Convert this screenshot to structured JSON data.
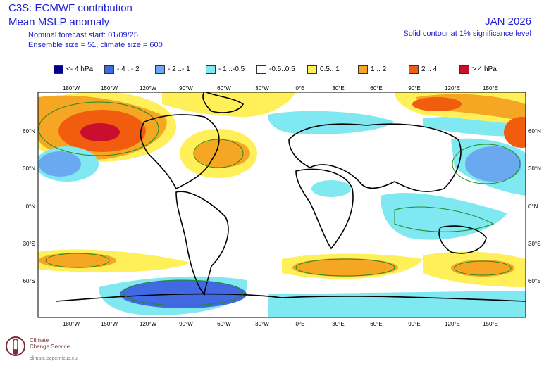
{
  "header": {
    "title": "C3S: ECMWF contribution",
    "variable": "Mean MSLP anomaly",
    "forecast_start": "Nominal forecast start: 01/09/25",
    "ensemble": "Ensemble size = 51, climate size = 600",
    "valid_month": "JAN 2026",
    "note": "Solid contour at 1% significance level"
  },
  "legend": [
    {
      "label": "<- 4 hPa",
      "color": "#00008b"
    },
    {
      "label": "- 4 ..- 2",
      "color": "#4169e1"
    },
    {
      "label": "- 2 ..- 1",
      "color": "#6aa8f0"
    },
    {
      "label": "- 1 ..-0.5",
      "color": "#7fe8f0"
    },
    {
      "label": "-0.5..0.5",
      "color": "#ffffff"
    },
    {
      "label": "0.5.. 1",
      "color": "#fff05a"
    },
    {
      "label": "1 .. 2",
      "color": "#f5a623"
    },
    {
      "label": "2 .. 4",
      "color": "#f25c0f"
    },
    {
      "label": ">  4 hPa",
      "color": "#c8102e"
    }
  ],
  "axes": {
    "lon_labels": [
      "180°W",
      "150°W",
      "120°W",
      "90°W",
      "60°W",
      "30°W",
      "0°E",
      "30°E",
      "60°E",
      "90°E",
      "120°E",
      "150°E"
    ],
    "lat_labels": [
      "60°N",
      "30°N",
      "0°N",
      "30°S",
      "60°S"
    ]
  },
  "logo": {
    "name_line1": "Climate",
    "name_line2": "Change Service",
    "url": "climate.copernicus.eu"
  },
  "icons": {
    "logo": "copernicus-climate-logo-icon"
  }
}
